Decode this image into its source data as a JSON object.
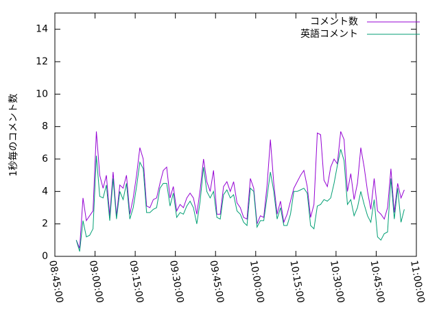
{
  "chart_data": {
    "type": "line",
    "ylabel": "1秒毎のコメント数",
    "xlim": [
      "08:45:00",
      "11:00:00"
    ],
    "xticks": [
      "08:45:00",
      "09:00:00",
      "09:15:00",
      "09:30:00",
      "09:45:00",
      "10:00:00",
      "10:15:00",
      "10:30:00",
      "10:45:00",
      "11:00:00"
    ],
    "ylim": [
      0,
      15
    ],
    "yticks": [
      0,
      2,
      4,
      6,
      8,
      10,
      12,
      14
    ],
    "legend": "top-right",
    "x": [
      "08:53:00",
      "08:54:15",
      "08:55:30",
      "08:56:45",
      "08:58:00",
      "08:59:15",
      "09:00:30",
      "09:01:45",
      "09:03:00",
      "09:04:15",
      "09:05:30",
      "09:06:45",
      "09:08:00",
      "09:09:15",
      "09:10:30",
      "09:11:45",
      "09:13:00",
      "09:14:15",
      "09:15:30",
      "09:16:45",
      "09:18:00",
      "09:19:15",
      "09:20:30",
      "09:21:45",
      "09:23:00",
      "09:24:15",
      "09:25:30",
      "09:26:45",
      "09:28:00",
      "09:29:15",
      "09:30:30",
      "09:31:45",
      "09:33:00",
      "09:34:15",
      "09:35:30",
      "09:36:45",
      "09:38:00",
      "09:39:15",
      "09:40:30",
      "09:41:45",
      "09:43:00",
      "09:44:15",
      "09:45:30",
      "09:46:45",
      "09:48:00",
      "09:49:15",
      "09:50:30",
      "09:51:45",
      "09:53:00",
      "09:54:15",
      "09:55:30",
      "09:56:45",
      "09:58:00",
      "09:59:15",
      "10:00:30",
      "10:01:45",
      "10:03:00",
      "10:04:15",
      "10:05:30",
      "10:06:45",
      "10:08:00",
      "10:09:15",
      "10:10:30",
      "10:11:45",
      "10:13:00",
      "10:14:15",
      "10:15:30",
      "10:16:45",
      "10:18:00",
      "10:19:15",
      "10:20:30",
      "10:21:45",
      "10:23:00",
      "10:24:15",
      "10:25:30",
      "10:26:45",
      "10:28:00",
      "10:29:15",
      "10:30:30",
      "10:31:45",
      "10:33:00",
      "10:34:15",
      "10:35:30",
      "10:36:45",
      "10:38:00",
      "10:39:15",
      "10:40:30",
      "10:41:45",
      "10:43:00",
      "10:44:15",
      "10:45:30",
      "10:46:45",
      "10:48:00",
      "10:49:15",
      "10:50:30",
      "10:51:45",
      "10:53:00",
      "10:54:15",
      "10:55:30"
    ],
    "series": [
      {
        "name": "コメント数",
        "color": "#9400d3",
        "values": [
          1.0,
          0.5,
          3.6,
          2.2,
          2.5,
          2.8,
          7.7,
          5.0,
          4.2,
          5.0,
          2.5,
          5.2,
          2.5,
          4.4,
          4.2,
          5.0,
          2.6,
          3.6,
          5.0,
          6.7,
          6.0,
          3.1,
          3.0,
          3.5,
          3.6,
          4.5,
          5.3,
          5.5,
          3.6,
          4.3,
          2.8,
          3.2,
          3.0,
          3.6,
          3.9,
          3.6,
          2.6,
          4.1,
          6.0,
          4.6,
          4.0,
          5.3,
          2.6,
          2.6,
          4.3,
          4.6,
          4.0,
          4.6,
          3.3,
          3.0,
          2.4,
          2.3,
          4.8,
          4.2,
          2.0,
          2.5,
          2.4,
          4.4,
          7.2,
          4.5,
          2.6,
          3.4,
          2.1,
          2.6,
          3.4,
          4.2,
          4.6,
          5.0,
          5.3,
          4.3,
          2.4,
          3.2,
          7.6,
          7.5,
          4.7,
          4.3,
          5.5,
          6.0,
          5.7,
          7.7,
          7.2,
          4.0,
          5.1,
          3.5,
          4.5,
          6.7,
          5.5,
          4.0,
          2.9,
          4.8,
          2.8,
          2.6,
          2.3,
          3.0,
          5.4,
          2.7,
          4.5,
          3.6,
          4.1
        ]
      },
      {
        "name": "英語コメント",
        "color": "#009e73",
        "values": [
          1.0,
          0.3,
          2.2,
          1.2,
          1.3,
          1.7,
          6.2,
          3.7,
          3.6,
          4.4,
          2.2,
          4.8,
          2.3,
          4.0,
          3.5,
          4.5,
          2.3,
          3.0,
          4.3,
          5.8,
          5.4,
          2.7,
          2.7,
          2.9,
          3.0,
          4.2,
          4.5,
          4.5,
          3.1,
          3.9,
          2.4,
          2.7,
          2.6,
          3.1,
          3.4,
          3.0,
          2.0,
          3.4,
          5.5,
          4.0,
          3.6,
          4.0,
          2.4,
          2.3,
          3.8,
          4.1,
          3.6,
          3.8,
          2.8,
          2.6,
          2.1,
          1.9,
          4.2,
          4.0,
          1.8,
          2.2,
          2.2,
          3.7,
          5.2,
          4.0,
          2.3,
          3.0,
          1.9,
          1.9,
          2.6,
          4.0,
          4.0,
          4.1,
          4.2,
          3.9,
          1.9,
          1.7,
          3.1,
          3.2,
          3.5,
          3.4,
          3.6,
          4.5,
          5.6,
          6.6,
          5.9,
          3.2,
          3.5,
          2.5,
          3.0,
          4.0,
          3.2,
          2.5,
          2.1,
          3.5,
          1.2,
          1.0,
          1.4,
          1.5,
          4.8,
          2.3,
          4.2,
          2.1,
          2.9
        ]
      }
    ]
  }
}
